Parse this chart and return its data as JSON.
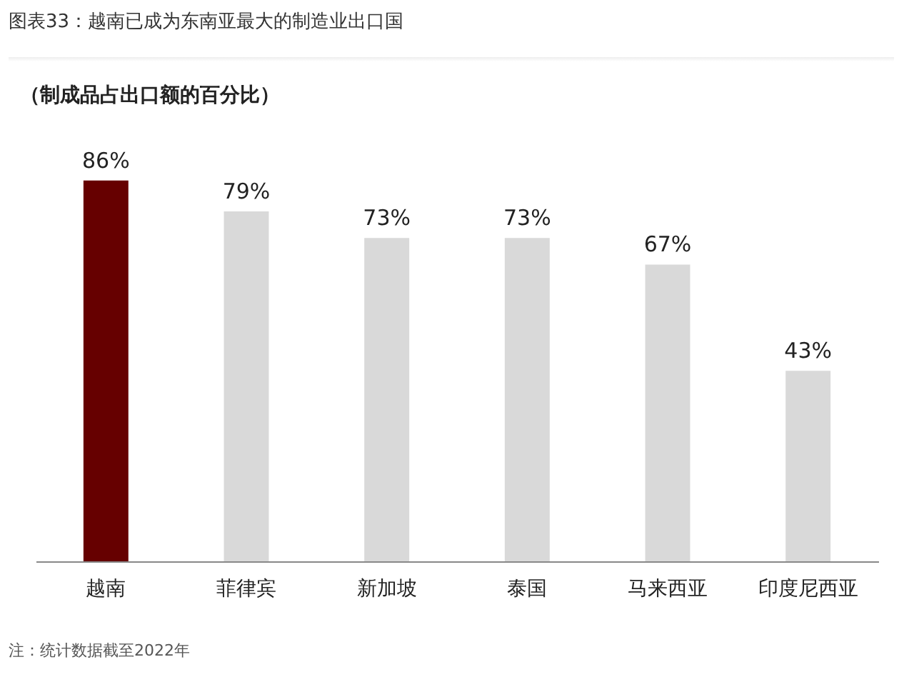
{
  "chart_data": {
    "type": "bar",
    "title": "图表33：越南已成为东南亚最大的制造业出口国",
    "subtitle": "（制成品占出口额的百分比）",
    "categories": [
      "越南",
      "菲律宾",
      "新加坡",
      "泰国",
      "马来西亚",
      "印度尼西亚"
    ],
    "values": [
      86,
      79,
      73,
      73,
      67,
      43
    ],
    "colors": [
      "#660000",
      "#d9d9d9",
      "#d9d9d9",
      "#d9d9d9",
      "#d9d9d9",
      "#d9d9d9"
    ],
    "value_labels": [
      "86%",
      "79%",
      "73%",
      "73%",
      "67%",
      "43%"
    ],
    "annotations": [
      "注：统计数据截至2022年"
    ],
    "tick_labels": "x",
    "grid": false,
    "legend": false
  }
}
